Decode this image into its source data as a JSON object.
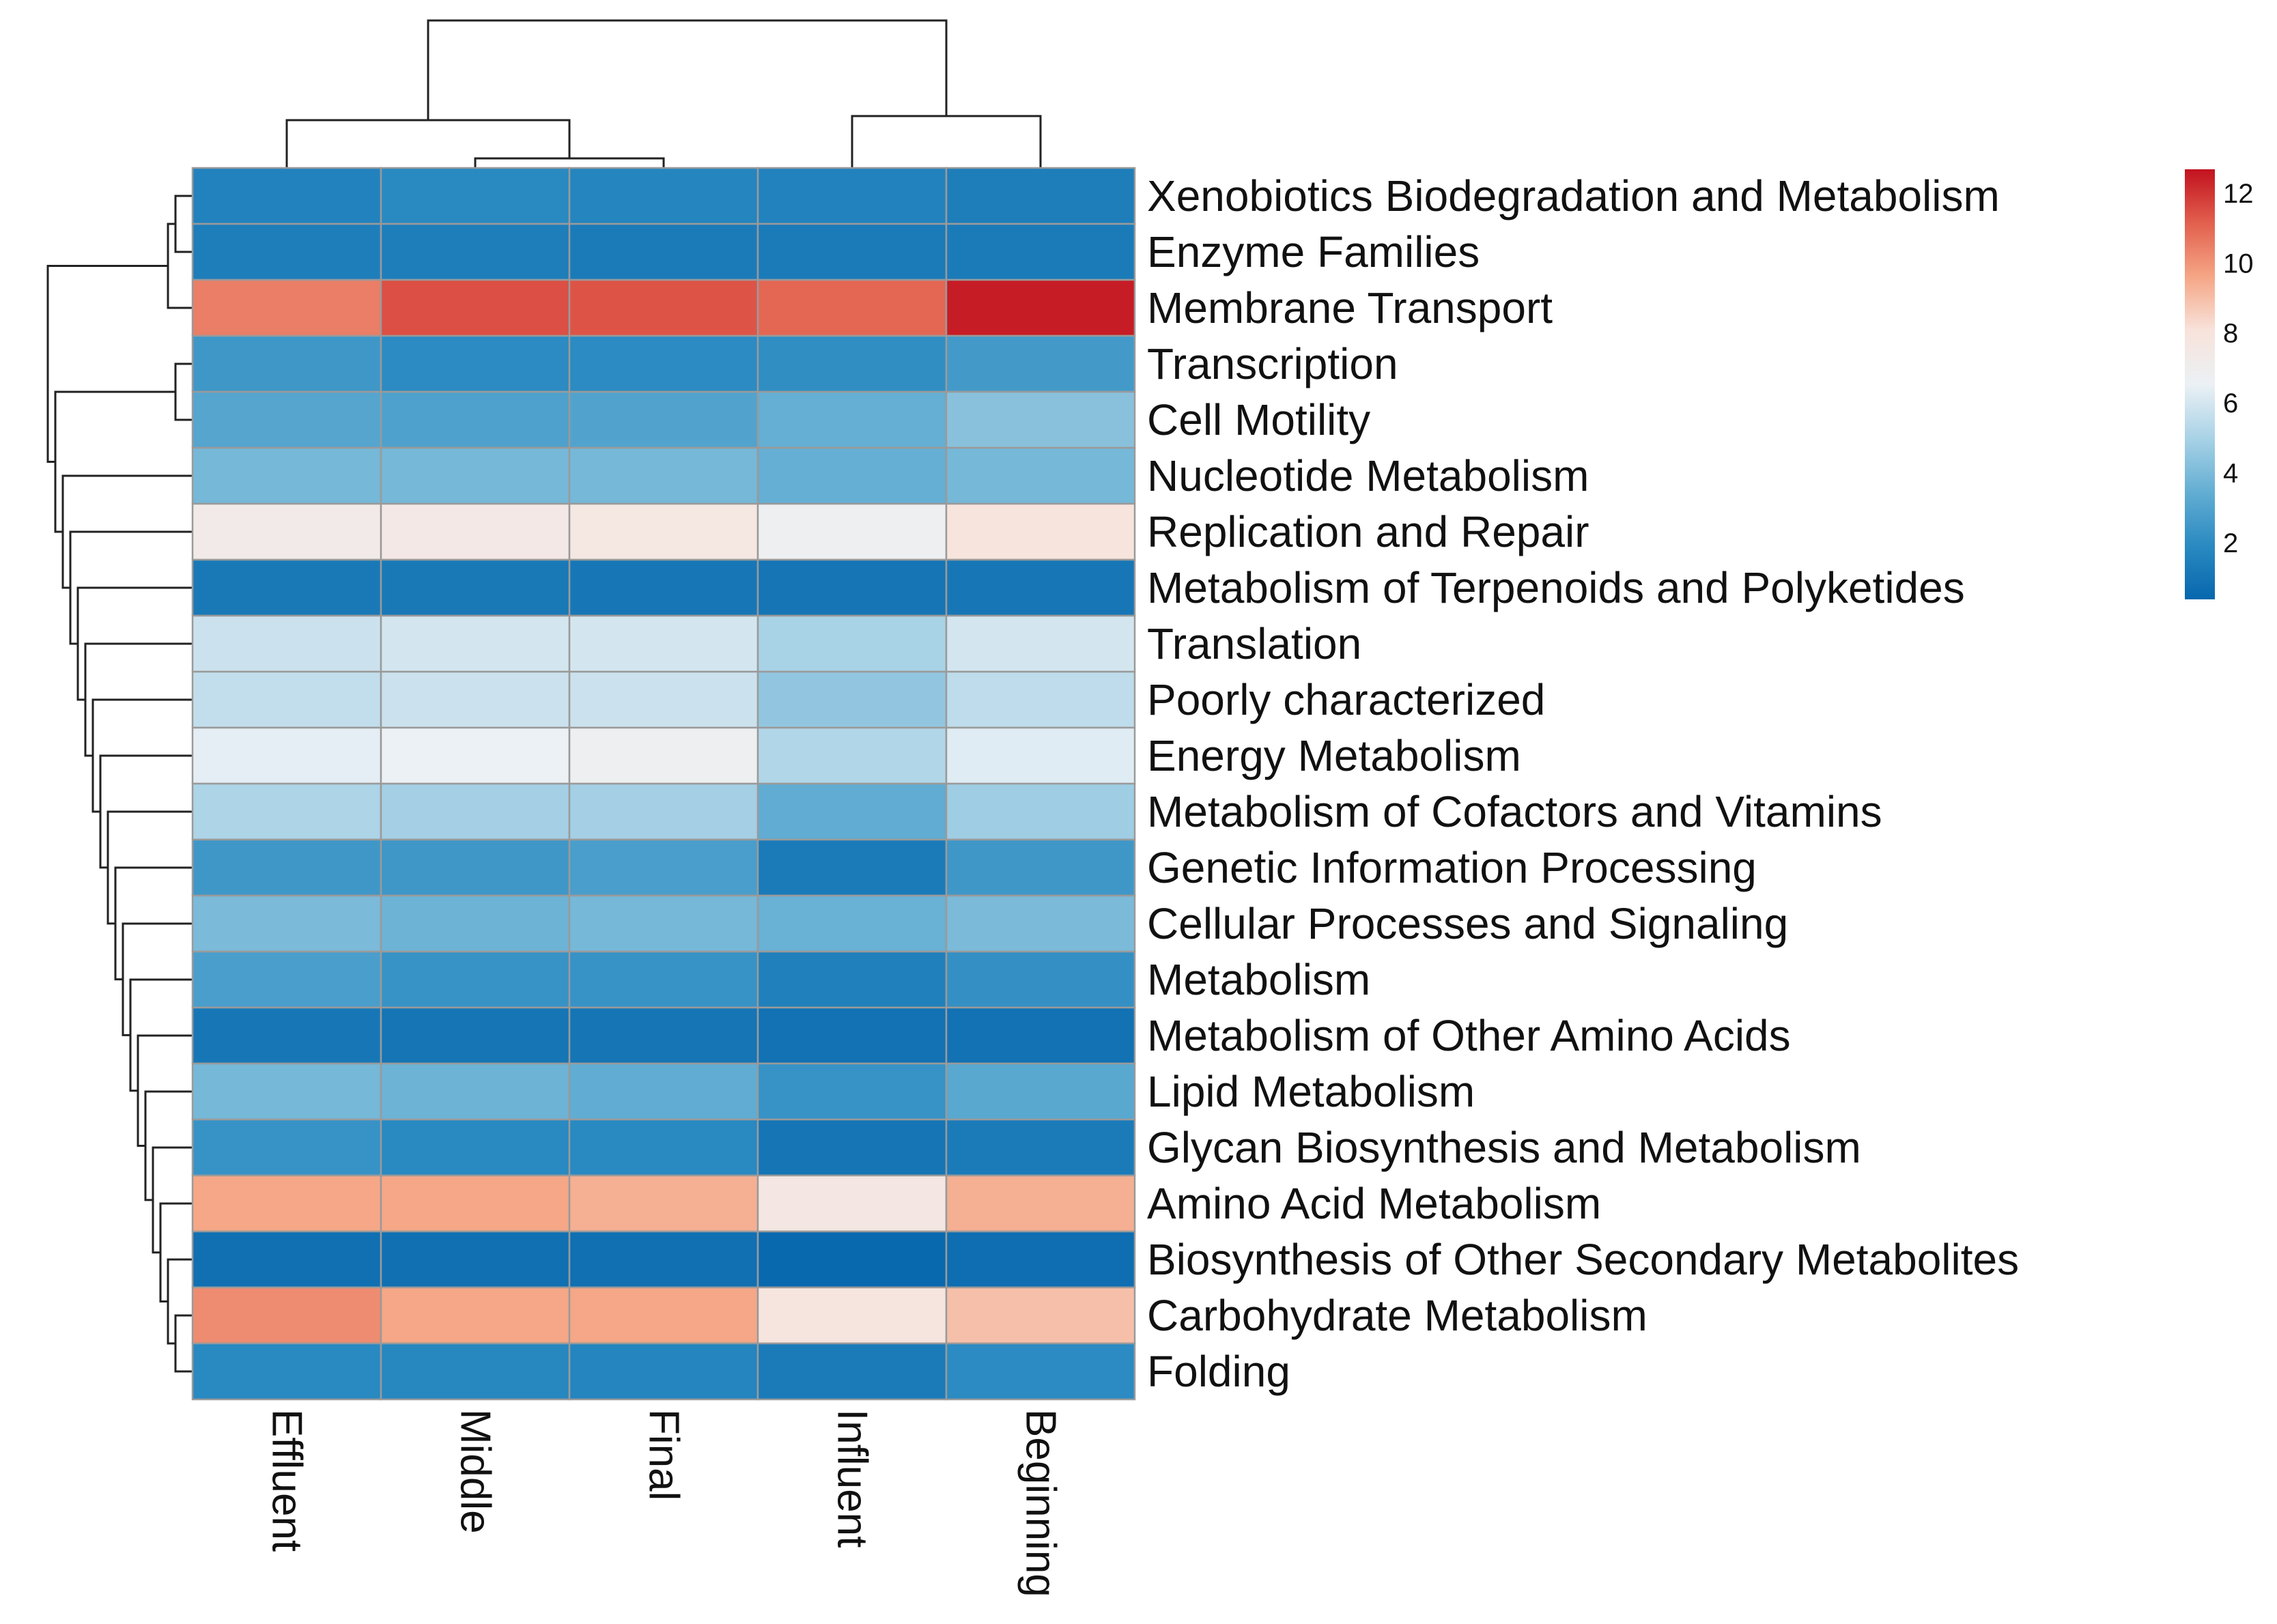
{
  "chart_data": {
    "type": "heatmap",
    "title": "",
    "columns": [
      "Effluent",
      "Middle",
      "Final",
      "Influent",
      "Beginning"
    ],
    "rows": [
      "Xenobiotics Biodegradation and Metabolism",
      "Enzyme Families",
      "Membrane Transport",
      "Transcription",
      "Cell Motility",
      "Nucleotide Metabolism",
      "Replication and Repair",
      "Metabolism of Terpenoids and Polyketides",
      "Translation",
      "Poorly characterized",
      "Energy Metabolism",
      "Metabolism of Cofactors and Vitamins",
      "Genetic Information Processing",
      "Cellular Processes and Signaling",
      "Metabolism",
      "Metabolism of Other Amino Acids",
      "Lipid Metabolism",
      "Glycan Biosynthesis and Metabolism",
      "Amino Acid Metabolism",
      "Biosynthesis of Other Secondary Metabolites",
      "Carbohydrate Metabolism",
      "Folding"
    ],
    "values": [
      [
        1.6,
        1.9,
        1.7,
        1.6,
        1.4
      ],
      [
        1.4,
        1.4,
        1.3,
        1.3,
        1.3
      ],
      [
        10.5,
        11.5,
        11.4,
        11.0,
        12.5
      ],
      [
        2.5,
        2.0,
        2.0,
        2.1,
        2.6
      ],
      [
        3.1,
        2.9,
        3.0,
        3.5,
        4.3
      ],
      [
        3.9,
        3.9,
        3.9,
        3.5,
        3.9
      ],
      [
        7.3,
        7.5,
        7.7,
        6.8,
        8.0
      ],
      [
        1.2,
        1.2,
        1.1,
        1.0,
        1.1
      ],
      [
        5.8,
        6.0,
        6.0,
        5.0,
        6.0
      ],
      [
        5.6,
        5.8,
        5.8,
        4.5,
        5.5
      ],
      [
        6.4,
        6.6,
        6.8,
        5.2,
        6.3
      ],
      [
        5.1,
        4.9,
        4.9,
        3.4,
        4.8
      ],
      [
        2.5,
        2.5,
        2.8,
        1.3,
        2.5
      ],
      [
        4.0,
        3.7,
        3.9,
        3.6,
        4.0
      ],
      [
        2.8,
        2.3,
        2.3,
        1.5,
        2.2
      ],
      [
        1.1,
        1.0,
        1.0,
        0.9,
        0.9
      ],
      [
        3.9,
        3.7,
        3.4,
        2.3,
        3.2
      ],
      [
        2.3,
        1.9,
        1.9,
        1.0,
        1.3
      ],
      [
        9.6,
        9.6,
        9.4,
        7.6,
        9.4
      ],
      [
        0.8,
        0.8,
        0.8,
        0.5,
        0.7
      ],
      [
        10.2,
        9.6,
        9.6,
        7.9,
        9.0
      ],
      [
        1.9,
        1.8,
        1.7,
        1.3,
        2.0
      ]
    ],
    "color_scale": {
      "min": 0.4,
      "max": 12.7,
      "stops": [
        "#0767ad",
        "#2a8ac1",
        "#63aed3",
        "#a9d2e6",
        "#ebf1f5",
        "#f8e3db",
        "#f5a686",
        "#e2604e",
        "#c2121f"
      ],
      "ticks": [
        2,
        4,
        6,
        8,
        10,
        12
      ]
    },
    "row_dendrogram": "hierarchical",
    "col_dendrogram": "hierarchical"
  }
}
